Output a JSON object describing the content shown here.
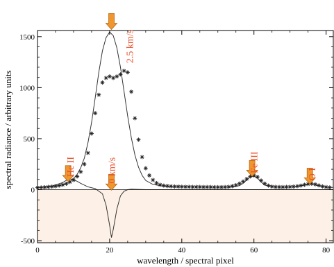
{
  "chart_data": {
    "type": "line",
    "xlabel": "wavelength / spectral pixel",
    "ylabel": "spectral radiance / arbitrary units",
    "xlim": [
      0,
      82
    ],
    "ylim": [
      -520,
      1560
    ],
    "x_ticks": [
      0,
      20,
      40,
      60,
      80
    ],
    "y_ticks": [
      -500,
      0,
      500,
      1000,
      1500
    ],
    "negative_region_fill": "#fdf1e7",
    "arrow_color": "#f0962f",
    "annotation_color": "#e8502a",
    "annotations": [
      {
        "text": "He II",
        "x": 9,
        "y": 125,
        "orientation": "vertical"
      },
      {
        "text": "0 km/s",
        "x": 20.5,
        "y": 60,
        "orientation": "vertical"
      },
      {
        "text": "2.5 km/s",
        "x": 25.5,
        "y": 1240,
        "orientation": "vertical"
      },
      {
        "text": "Fe III",
        "x": 60,
        "y": 160,
        "orientation": "vertical"
      },
      {
        "text": "O I",
        "x": 76,
        "y": 90,
        "orientation": "vertical"
      }
    ],
    "arrows": [
      {
        "x": 20.5,
        "y_tip": 1570
      },
      {
        "x": 8.5,
        "y_tip": 80
      },
      {
        "x": 20.5,
        "y_tip": -5
      },
      {
        "x": 59.5,
        "y_tip": 130
      },
      {
        "x": 75.5,
        "y_tip": 55
      }
    ],
    "series": [
      {
        "kind": "line",
        "x": [
          0,
          2,
          4,
          6,
          7,
          8,
          9,
          10,
          11,
          12,
          13,
          14,
          15,
          16,
          17,
          18,
          19,
          20,
          21,
          22,
          23,
          24,
          25,
          26,
          27,
          28,
          29,
          30,
          32,
          35,
          40,
          45,
          50,
          54,
          56,
          57,
          58,
          59,
          60,
          61,
          62,
          63,
          65,
          68,
          70,
          72,
          74,
          75,
          76,
          77,
          78,
          80,
          82
        ],
        "y": [
          20,
          24,
          30,
          40,
          50,
          62,
          80,
          110,
          150,
          215,
          310,
          460,
          660,
          900,
          1150,
          1360,
          1490,
          1545,
          1510,
          1390,
          1200,
          960,
          720,
          510,
          340,
          220,
          140,
          90,
          52,
          33,
          27,
          25,
          24,
          26,
          40,
          62,
          95,
          125,
          132,
          112,
          75,
          45,
          28,
          24,
          26,
          32,
          45,
          55,
          58,
          48,
          36,
          24,
          22
        ]
      },
      {
        "kind": "line",
        "x": [
          0,
          4,
          7,
          8,
          9,
          10,
          11,
          12,
          13,
          14,
          16,
          18,
          19,
          20,
          20.5,
          21,
          22,
          23,
          24,
          25,
          26,
          28,
          30,
          35,
          40,
          50,
          60,
          70,
          80,
          82
        ],
        "y": [
          20,
          35,
          70,
          92,
          105,
          98,
          82,
          62,
          45,
          28,
          10,
          -40,
          -150,
          -350,
          -470,
          -390,
          -190,
          -60,
          -15,
          0,
          5,
          3,
          0,
          0,
          0,
          0,
          0,
          0,
          0,
          0
        ]
      },
      {
        "kind": "markers",
        "marker": "asterisk",
        "x": [
          0,
          1,
          2,
          3,
          4,
          5,
          6,
          7,
          8,
          9,
          10,
          11,
          12,
          13,
          14,
          15,
          16,
          17,
          18,
          19,
          20,
          21,
          22,
          23,
          24,
          25,
          26,
          27,
          28,
          29,
          30,
          31,
          32,
          33,
          34,
          35,
          36,
          37,
          38,
          39,
          40,
          41,
          42,
          43,
          44,
          45,
          46,
          47,
          48,
          49,
          50,
          51,
          52,
          53,
          54,
          55,
          56,
          57,
          58,
          59,
          60,
          61,
          62,
          63,
          64,
          65,
          66,
          67,
          68,
          69,
          70,
          71,
          72,
          73,
          74,
          75,
          76,
          77,
          78,
          79,
          80,
          81
        ],
        "y": [
          20,
          22,
          24,
          27,
          30,
          34,
          40,
          48,
          58,
          75,
          95,
          130,
          175,
          250,
          360,
          550,
          750,
          930,
          1050,
          1095,
          1110,
          1095,
          1110,
          1130,
          1165,
          1150,
          960,
          700,
          490,
          320,
          210,
          140,
          95,
          65,
          48,
          40,
          36,
          33,
          31,
          30,
          29,
          28,
          28,
          27,
          27,
          27,
          26,
          26,
          26,
          25,
          25,
          25,
          26,
          28,
          35,
          45,
          60,
          80,
          105,
          130,
          140,
          125,
          90,
          60,
          40,
          30,
          27,
          26,
          26,
          27,
          28,
          30,
          34,
          40,
          48,
          55,
          58,
          52,
          42,
          32,
          26,
          22
        ]
      }
    ]
  }
}
